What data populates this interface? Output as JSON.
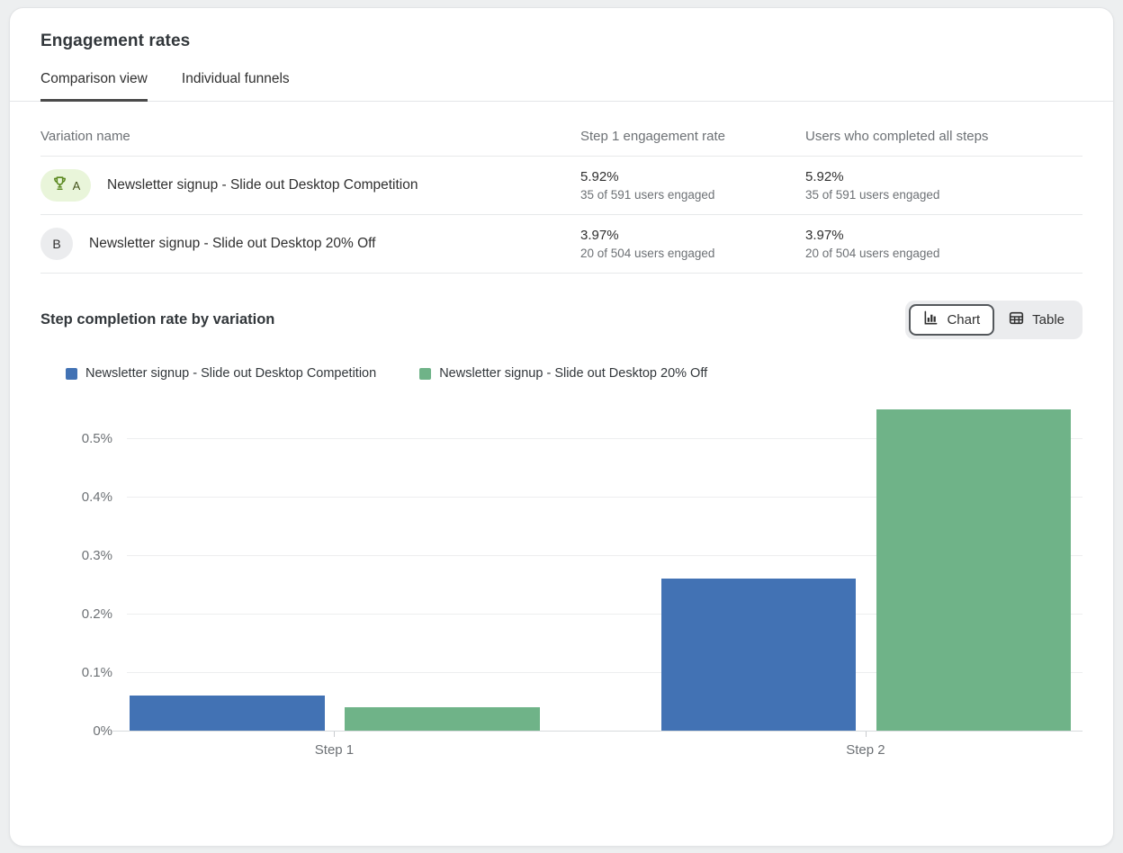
{
  "header": {
    "title": "Engagement rates"
  },
  "tabs": [
    {
      "label": "Comparison view",
      "active": true
    },
    {
      "label": "Individual funnels",
      "active": false
    }
  ],
  "comparison_table": {
    "columns": [
      "Variation name",
      "Step 1 engagement rate",
      "Users who completed all steps"
    ],
    "rows": [
      {
        "badge": "A",
        "winner": true,
        "name": "Newsletter signup - Slide out Desktop Competition",
        "step1_rate": "5.92%",
        "step1_detail": "35 of 591 users engaged",
        "completed_rate": "5.92%",
        "completed_detail": "35 of 591 users engaged"
      },
      {
        "badge": "B",
        "winner": false,
        "name": "Newsletter signup - Slide out Desktop 20% Off",
        "step1_rate": "3.97%",
        "step1_detail": "20 of 504 users engaged",
        "completed_rate": "3.97%",
        "completed_detail": "20 of 504 users engaged"
      }
    ]
  },
  "view_toggle": {
    "chart_label": "Chart",
    "table_label": "Table",
    "active": "Chart"
  },
  "colors": {
    "series_blue": "#4272b4",
    "series_green": "#6fb388",
    "winner_badge_bg": "#e9f5da",
    "winner_badge_icon": "#5c8a22"
  },
  "chart_data": {
    "type": "bar",
    "title": "Step completion rate by variation",
    "categories": [
      "Step 1",
      "Step 2"
    ],
    "series": [
      {
        "name": "Newsletter signup - Slide out Desktop Competition",
        "color": "#4272b4",
        "values": [
          0.06,
          0.26
        ]
      },
      {
        "name": "Newsletter signup - Slide out Desktop 20% Off",
        "color": "#6fb388",
        "values": [
          0.04,
          0.55
        ]
      }
    ],
    "yticks": [
      0,
      0.1,
      0.2,
      0.3,
      0.4,
      0.5
    ],
    "ytick_suffix": "%",
    "ylim": [
      0,
      0.56
    ],
    "grid": true,
    "legend_position": "top-left"
  }
}
